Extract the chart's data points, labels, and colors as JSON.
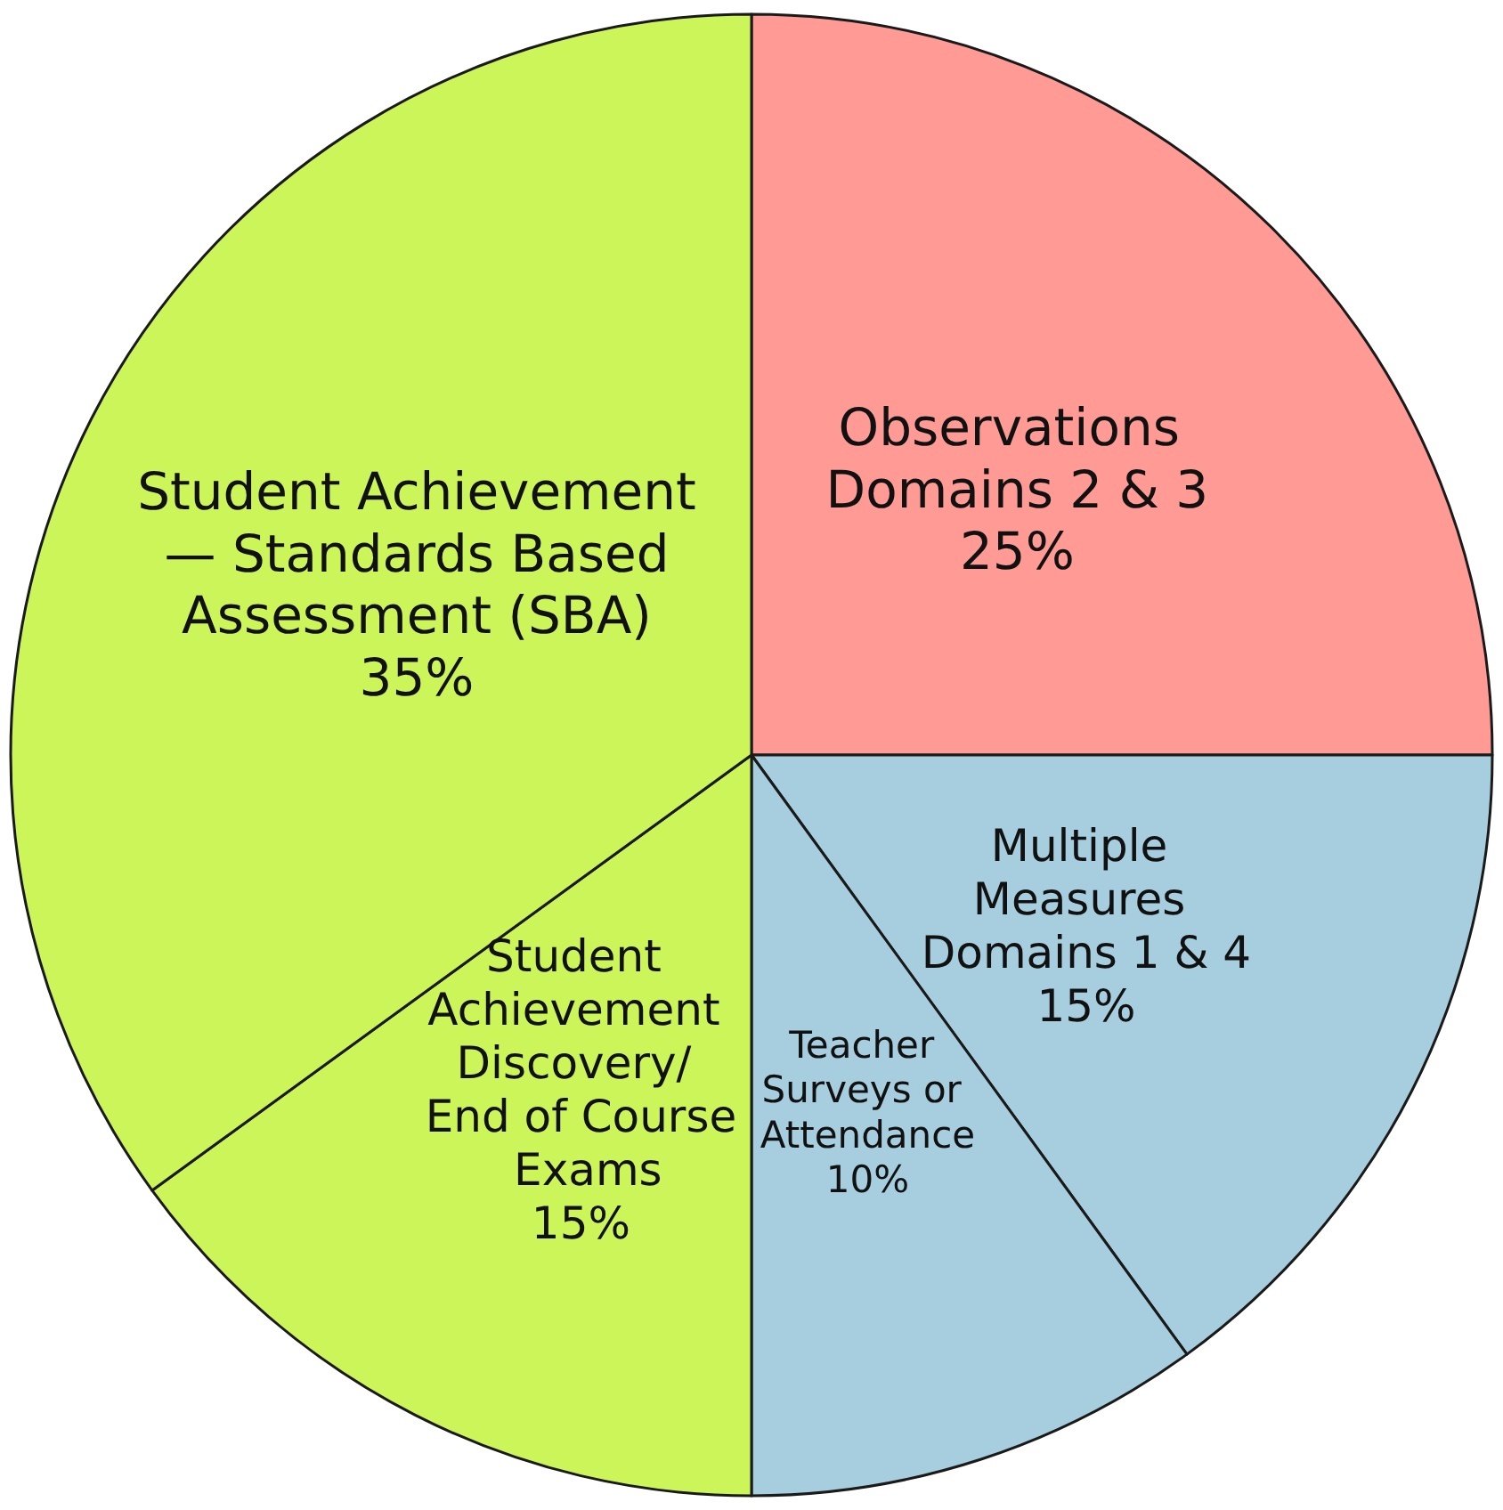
{
  "chart_data": {
    "type": "pie",
    "categories": [
      "Observations Domains 2 & 3",
      "Multiple Measures Domains 1 & 4",
      "Teacher Surveys or Attendance",
      "Student Achievement Discovery/ End of Course Exams",
      "Student Achievement — Standards Based Assessment (SBA)"
    ],
    "values": [
      25,
      15,
      10,
      15,
      35
    ],
    "value_labels": [
      "25%",
      "15%",
      "10%",
      "15%",
      "35%"
    ],
    "colors": [
      "#ff9a95",
      "#a6cedf",
      "#a6cedf",
      "#ccf55a",
      "#ccf55a"
    ]
  }
}
